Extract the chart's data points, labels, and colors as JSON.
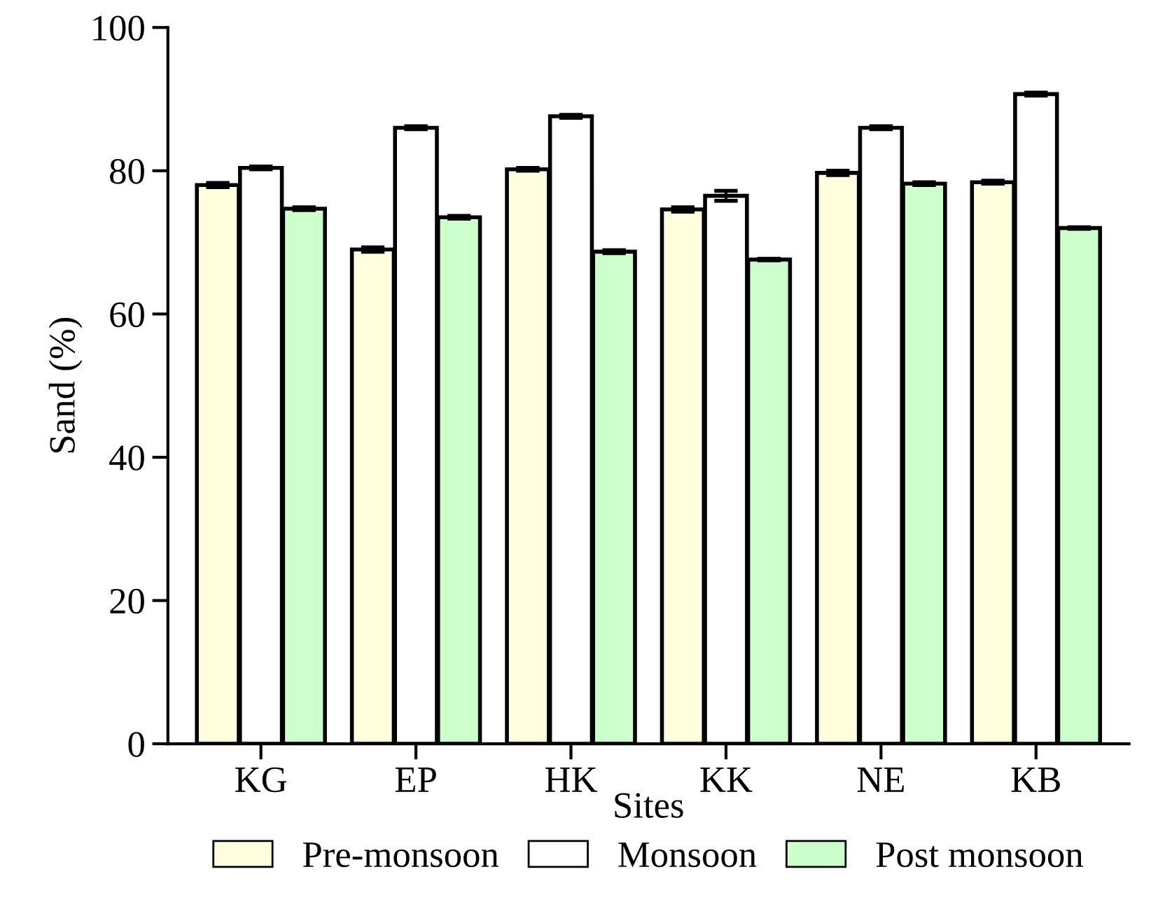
{
  "chart_data": {
    "type": "bar",
    "xlabel": "Sites",
    "ylabel": "Sand (%)",
    "categories": [
      "KG",
      "EP",
      "HK",
      "KK",
      "NE",
      "KB"
    ],
    "series": [
      {
        "name": "Pre-monsoon",
        "color": "#ffffdd",
        "values": [
          78,
          69,
          80.2,
          74.6,
          79.7,
          78.4
        ],
        "errors": [
          0.3,
          0.3,
          0.2,
          0.3,
          0.3,
          0.2
        ]
      },
      {
        "name": "Monsoon",
        "color": "#ffffff",
        "values": [
          80.4,
          86,
          87.6,
          76.5,
          86,
          90.7
        ],
        "errors": [
          0.2,
          0.2,
          0.2,
          0.7,
          0.2,
          0.2
        ]
      },
      {
        "name": "Post monsoon",
        "color": "#ccffcc",
        "values": [
          74.7,
          73.5,
          68.7,
          67.6,
          78.2,
          72
        ],
        "errors": [
          0.2,
          0.2,
          0.2,
          0.1,
          0.2,
          0.1
        ]
      }
    ],
    "ylim": [
      0,
      100
    ],
    "yticks": [
      0,
      20,
      40,
      60,
      80,
      100
    ],
    "grid": false,
    "legend": "bottom"
  }
}
